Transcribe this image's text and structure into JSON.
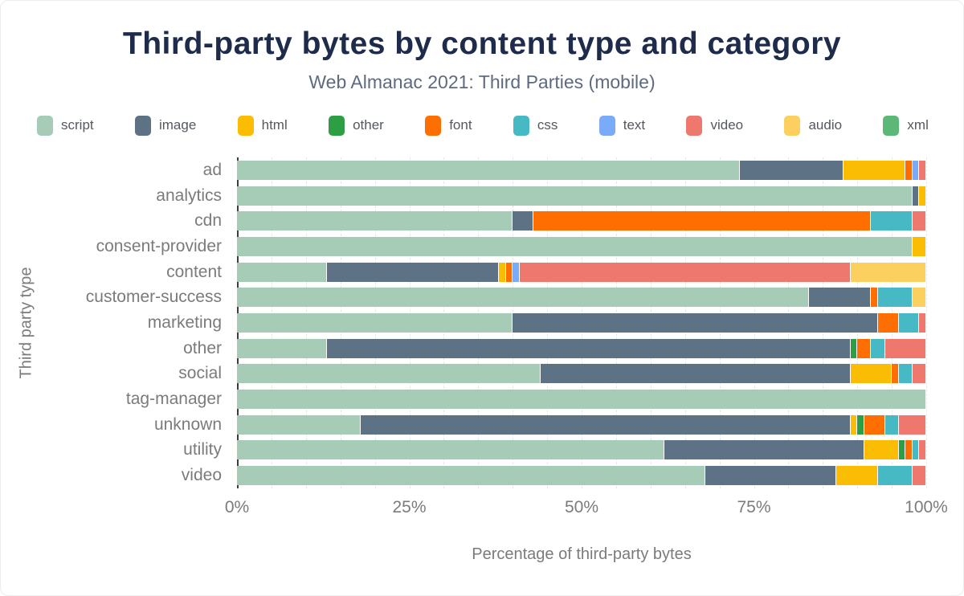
{
  "title": "Third-party bytes by content type and category",
  "subtitle": "Web Almanac 2021: Third Parties (mobile)",
  "chart_data": {
    "type": "bar",
    "orientation": "horizontal",
    "stacked": true,
    "title": "Third-party bytes by content type and category",
    "subtitle": "Web Almanac 2021: Third Parties (mobile)",
    "xlabel": "Percentage of third-party bytes",
    "ylabel": "Third party type",
    "xlim": [
      0,
      100
    ],
    "x_ticks": [
      "0%",
      "25%",
      "50%",
      "75%",
      "100%"
    ],
    "grid": "dashed-vertical-minor-5pct",
    "legend_position": "top",
    "categories": [
      "ad",
      "analytics",
      "cdn",
      "consent-provider",
      "content",
      "customer-success",
      "marketing",
      "other",
      "social",
      "tag-manager",
      "unknown",
      "utility",
      "video"
    ],
    "series": [
      {
        "name": "script",
        "color": "#a6cbb7",
        "values": [
          73,
          98,
          40,
          98,
          13,
          83,
          40,
          13,
          44,
          100,
          18,
          62,
          68
        ]
      },
      {
        "name": "image",
        "color": "#5e7286",
        "values": [
          15,
          1,
          3,
          0,
          25,
          9,
          53,
          76,
          45,
          0,
          71,
          29,
          19
        ]
      },
      {
        "name": "html",
        "color": "#fbbc04",
        "values": [
          9,
          1,
          0,
          2,
          1,
          0,
          0,
          0,
          6,
          0,
          1,
          5,
          6
        ]
      },
      {
        "name": "other",
        "color": "#2e9e44",
        "values": [
          0,
          0,
          0,
          0,
          0,
          0,
          0,
          1,
          0,
          0,
          1,
          1,
          0
        ]
      },
      {
        "name": "font",
        "color": "#fe6e00",
        "values": [
          1,
          0,
          49,
          0,
          1,
          1,
          3,
          2,
          1,
          0,
          3,
          1,
          0
        ]
      },
      {
        "name": "css",
        "color": "#46b9c4",
        "values": [
          0,
          0,
          6,
          0,
          0,
          5,
          3,
          2,
          2,
          0,
          2,
          1,
          5
        ]
      },
      {
        "name": "text",
        "color": "#7aabf8",
        "values": [
          1,
          0,
          0,
          0,
          1,
          0,
          0,
          0,
          0,
          0,
          0,
          0,
          0
        ]
      },
      {
        "name": "video",
        "color": "#ee786e",
        "values": [
          1,
          0,
          2,
          0,
          48,
          0,
          1,
          6,
          2,
          0,
          4,
          1,
          2
        ]
      },
      {
        "name": "audio",
        "color": "#fcd05e",
        "values": [
          0,
          0,
          0,
          0,
          11,
          2,
          0,
          0,
          0,
          0,
          0,
          0,
          0
        ]
      },
      {
        "name": "xml",
        "color": "#5cb876",
        "values": [
          0,
          0,
          0,
          0,
          0,
          0,
          0,
          0,
          0,
          0,
          0,
          0,
          0
        ]
      }
    ]
  },
  "colors": {
    "title": "#1e2b4a",
    "subtitle": "#5d6a80",
    "axis_text": "#7b7b7b",
    "legend_text": "#54585f",
    "axis_line": "#3c3c3c"
  }
}
